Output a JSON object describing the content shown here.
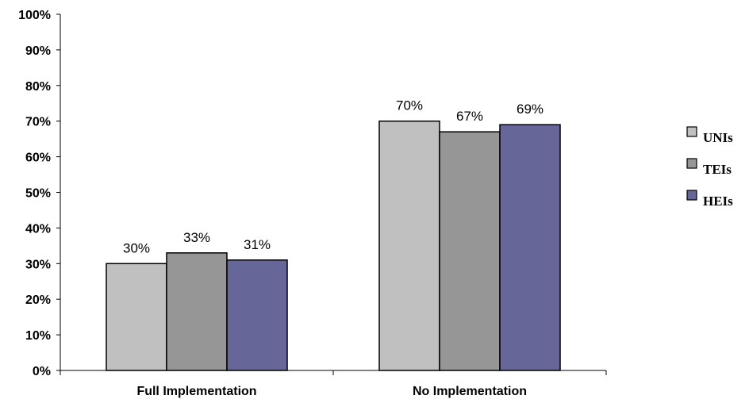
{
  "chart_data": {
    "type": "bar",
    "categories": [
      "Full Implementation",
      "No Implementation"
    ],
    "series": [
      {
        "name": "UNIs",
        "values": [
          30,
          70
        ],
        "labels": [
          "30%",
          "70%"
        ],
        "color": "#c0c0c0"
      },
      {
        "name": "TEIs",
        "values": [
          33,
          67
        ],
        "labels": [
          "33%",
          "67%"
        ],
        "color": "#969696"
      },
      {
        "name": "HEIs",
        "values": [
          31,
          69
        ],
        "labels": [
          "31%",
          "69%"
        ],
        "color": "#666699"
      }
    ],
    "yticks": [
      "0%",
      "10%",
      "20%",
      "30%",
      "40%",
      "50%",
      "60%",
      "70%",
      "80%",
      "90%",
      "100%"
    ],
    "ylim": [
      0,
      100
    ],
    "grid": false,
    "legend_position": "right"
  }
}
